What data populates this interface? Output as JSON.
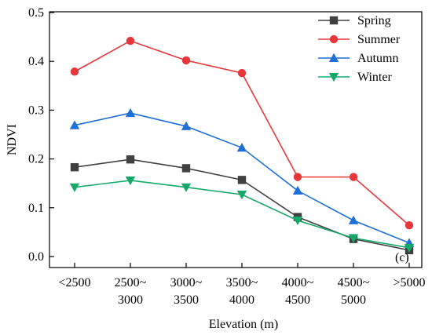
{
  "chart_data": {
    "type": "line",
    "categories": [
      [
        "<2500"
      ],
      [
        "2500~",
        "3000"
      ],
      [
        "3000~",
        "3500"
      ],
      [
        "3500~",
        "4000"
      ],
      [
        "4000~",
        "4500"
      ],
      [
        "4500~",
        "5000"
      ],
      [
        ">5000"
      ]
    ],
    "xlabel": "Elevation (m)",
    "ylabel": "NDVI",
    "ylim": [
      0.0,
      0.5
    ],
    "yticks": [
      "0.0",
      "0.1",
      "0.2",
      "0.3",
      "0.4",
      "0.5"
    ],
    "grid": false,
    "legend_position": "top-right",
    "panel_label": "(c)",
    "series": [
      {
        "name": "Spring",
        "color": "#404040",
        "marker": "square",
        "values": [
          0.183,
          0.199,
          0.181,
          0.157,
          0.081,
          0.036,
          0.013
        ]
      },
      {
        "name": "Summer",
        "color": "#e8373a",
        "marker": "circle",
        "values": [
          0.379,
          0.442,
          0.402,
          0.376,
          0.163,
          0.163,
          0.064
        ]
      },
      {
        "name": "Autumn",
        "color": "#1f6fd8",
        "marker": "triangle-up",
        "values": [
          0.269,
          0.294,
          0.267,
          0.223,
          0.135,
          0.074,
          0.028
        ]
      },
      {
        "name": "Winter",
        "color": "#16a86a",
        "marker": "triangle-down",
        "values": [
          0.142,
          0.156,
          0.142,
          0.127,
          0.074,
          0.038,
          0.018
        ]
      }
    ]
  }
}
